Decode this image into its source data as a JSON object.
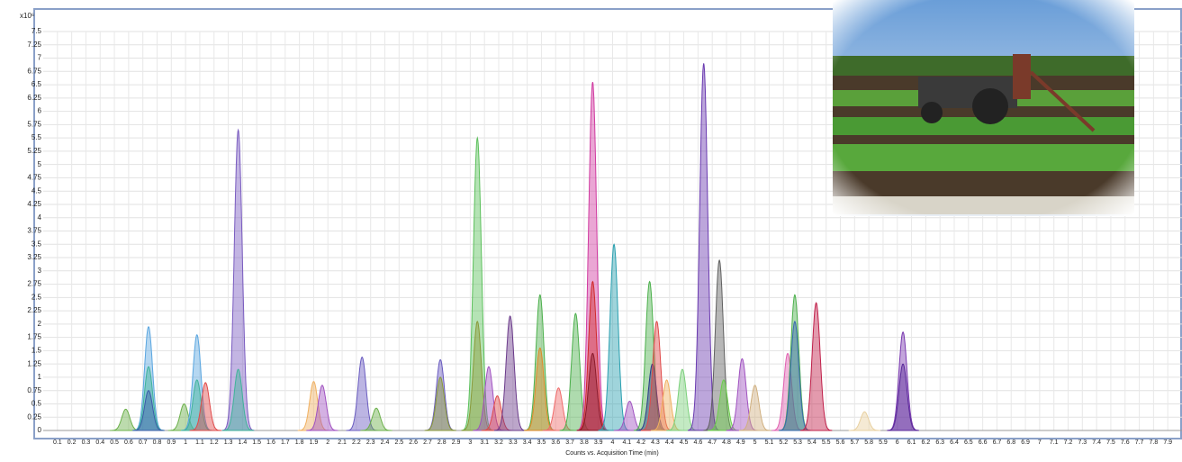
{
  "chart_data": {
    "type": "chromatogram",
    "y_unit": "x10⁶",
    "xlabel": "Counts vs. Acquisition Time (min)",
    "grid": true,
    "xlim": [
      0,
      8
    ],
    "ylim": [
      0,
      7.5
    ],
    "xticks": [
      0.1,
      0.2,
      0.3,
      0.4,
      0.5,
      0.6,
      0.7,
      0.8,
      0.9,
      1,
      1.1,
      1.2,
      1.3,
      1.4,
      1.5,
      1.6,
      1.7,
      1.8,
      1.9,
      2,
      2.1,
      2.2,
      2.3,
      2.4,
      2.5,
      2.6,
      2.7,
      2.8,
      2.9,
      3,
      3.1,
      3.2,
      3.3,
      3.4,
      3.5,
      3.6,
      3.7,
      3.8,
      3.9,
      4,
      4.1,
      4.2,
      4.3,
      4.4,
      4.5,
      4.6,
      4.7,
      4.8,
      4.9,
      5,
      5.1,
      5.2,
      5.3,
      5.4,
      5.5,
      5.6,
      5.7,
      5.8,
      5.9,
      6,
      6.1,
      6.2,
      6.3,
      6.4,
      6.5,
      6.6,
      6.7,
      6.8,
      6.9,
      7,
      7.1,
      7.2,
      7.3,
      7.4,
      7.5,
      7.6,
      7.7,
      7.8,
      7.9
    ],
    "yticks": [
      0,
      0.25,
      0.5,
      0.75,
      1,
      1.25,
      1.5,
      1.75,
      2,
      2.25,
      2.5,
      2.75,
      3,
      3.25,
      3.5,
      3.75,
      4,
      4.25,
      4.5,
      4.75,
      5,
      5.25,
      5.5,
      5.75,
      6,
      6.25,
      6.5,
      6.75,
      7,
      7.25,
      7.5
    ],
    "x": [
      0.58,
      0.74,
      0.74,
      0.74,
      0.99,
      1.08,
      1.08,
      1.14,
      1.37,
      1.37,
      1.9,
      1.96,
      2.24,
      2.34,
      2.79,
      2.79,
      3.05,
      3.05,
      3.13,
      3.19,
      3.28,
      3.49,
      3.49,
      3.62,
      3.74,
      3.86,
      3.86,
      3.86,
      4.01,
      4.12,
      4.26,
      4.28,
      4.31,
      4.38,
      4.49,
      4.64,
      4.75,
      4.78,
      4.91,
      5.0,
      5.23,
      5.28,
      5.28,
      5.43,
      5.77,
      6.04,
      6.04
    ],
    "values": [
      0.4,
      1.95,
      1.2,
      0.75,
      0.5,
      1.8,
      0.95,
      0.9,
      5.65,
      1.15,
      0.92,
      0.85,
      1.38,
      0.42,
      1.33,
      1.0,
      5.5,
      2.05,
      1.2,
      0.65,
      2.15,
      2.55,
      1.55,
      0.8,
      2.2,
      6.55,
      2.8,
      1.45,
      3.5,
      0.55,
      2.8,
      1.25,
      2.05,
      0.95,
      1.15,
      6.9,
      3.2,
      0.95,
      1.35,
      0.85,
      1.45,
      2.55,
      2.05,
      2.4,
      0.35,
      1.85,
      1.25
    ],
    "colors": [
      "#6bb04a",
      "#5aa6e0",
      "#3fb39a",
      "#3a5ca8",
      "#6bb04a",
      "#5aa6e0",
      "#3fb39a",
      "#e04a4a",
      "#7a5cc0",
      "#3fb39a",
      "#f0b060",
      "#a052c0",
      "#6a5cc0",
      "#6bb04a",
      "#6a5cc0",
      "#8a9a3a",
      "#5cc05c",
      "#8a9a3a",
      "#a052c0",
      "#e04a4a",
      "#6a3a8a",
      "#4cb04c",
      "#e08a2a",
      "#f06a6a",
      "#4cb04c",
      "#d03aa0",
      "#d02a2a",
      "#8a1a2a",
      "#2aa0b0",
      "#a052c0",
      "#4cb04c",
      "#2a3a8a",
      "#e04a4a",
      "#f0b060",
      "#7ad07a",
      "#6a3ab0",
      "#606060",
      "#6bd04a",
      "#a052c0",
      "#d0b080",
      "#e060b0",
      "#4cb04c",
      "#3a6ab0",
      "#c0204a",
      "#e8d0a0",
      "#7a3ab0",
      "#5a2a9a"
    ]
  }
}
